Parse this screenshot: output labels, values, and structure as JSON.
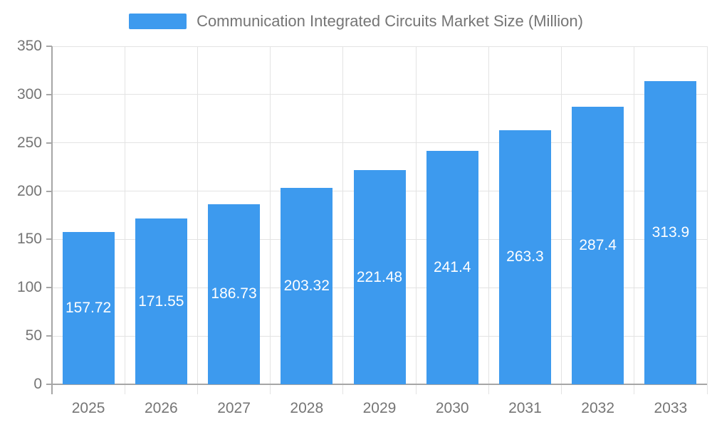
{
  "chart_data": {
    "type": "bar",
    "title": "Communication Integrated Circuits Market Size (Million)",
    "legend": {
      "label": "Communication Integrated Circuits Market Size (Million)",
      "position": "top-center"
    },
    "categories": [
      "2025",
      "2026",
      "2027",
      "2028",
      "2029",
      "2030",
      "2031",
      "2032",
      "2033"
    ],
    "values": [
      157.72,
      171.55,
      186.73,
      203.32,
      221.48,
      241.4,
      263.3,
      287.4,
      313.9
    ],
    "value_labels": [
      "157.72",
      "171.55",
      "186.73",
      "203.32",
      "221.48",
      "241.4",
      "263.3",
      "287.4",
      "313.9"
    ],
    "xlabel": "",
    "ylabel": "",
    "ylim": [
      0,
      350
    ],
    "yticks": [
      0,
      50,
      100,
      150,
      200,
      250,
      300,
      350
    ],
    "grid": true,
    "value_labels_inside_bars": true,
    "colors": {
      "bar": "#3D9AEE",
      "text": "#757575",
      "value_label": "#FFFFFF",
      "axis": "#A6A6A6",
      "grid": "#E3E3E3"
    }
  }
}
